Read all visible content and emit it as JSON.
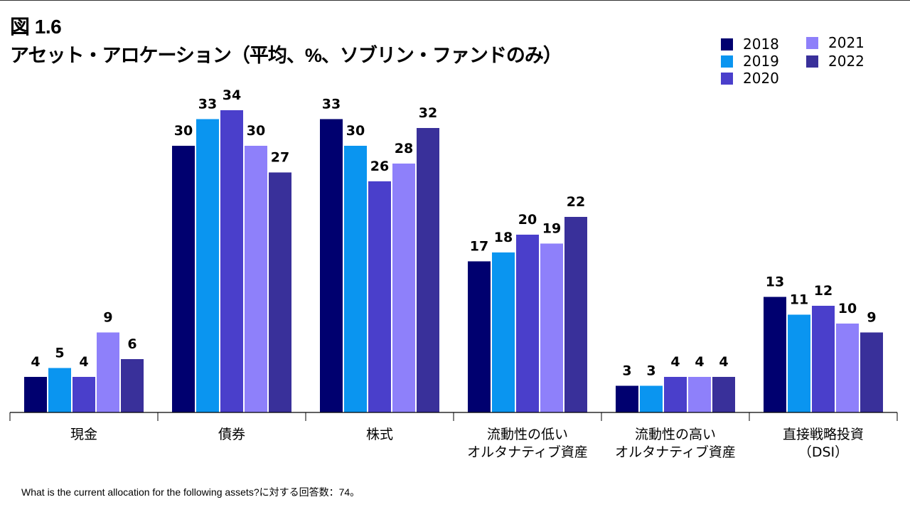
{
  "figure": {
    "number": "図 1.6",
    "title": "アセット・アロケーション（平均、%、ソブリン・ファンドのみ）"
  },
  "footnote": "What is the current allocation for the following assets?に対する回答数：74。",
  "chart_data": {
    "type": "bar",
    "title": "アセット・アロケーション（平均、%、ソブリン・ファンドのみ）",
    "xlabel": "",
    "ylabel": "",
    "ylim": [
      0,
      34
    ],
    "grid": false,
    "legend_position": "top-right",
    "categories": [
      [
        "現金"
      ],
      [
        "債券"
      ],
      [
        "株式"
      ],
      [
        "流動性の低い",
        "オルタナティブ資産"
      ],
      [
        "流動性の高い",
        "オルタナティブ資産"
      ],
      [
        "直接戦略投資",
        "（DSI）"
      ]
    ],
    "series": [
      {
        "name": "2018",
        "color": "#00006F",
        "values": [
          4,
          30,
          33,
          17,
          3,
          13
        ]
      },
      {
        "name": "2019",
        "color": "#0A95F0",
        "values": [
          5,
          33,
          30,
          18,
          3,
          11
        ]
      },
      {
        "name": "2020",
        "color": "#4A3FCB",
        "values": [
          4,
          34,
          26,
          20,
          4,
          12
        ]
      },
      {
        "name": "2021",
        "color": "#8E80FA",
        "values": [
          9,
          30,
          28,
          19,
          4,
          10
        ]
      },
      {
        "name": "2022",
        "color": "#39309A",
        "values": [
          6,
          27,
          32,
          22,
          4,
          9
        ]
      }
    ]
  }
}
